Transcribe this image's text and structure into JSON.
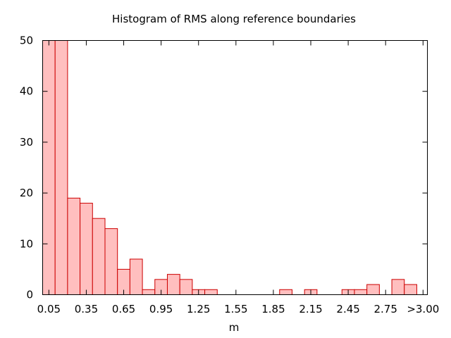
{
  "chart_data": {
    "type": "bar",
    "title": "Histogram of RMS along reference boundaries",
    "xlabel": "m",
    "ylabel": "",
    "ylim": [
      0,
      50
    ],
    "yticks": [
      0,
      10,
      20,
      30,
      40,
      50
    ],
    "xtick_labels": [
      "0.05",
      "0.35",
      "0.65",
      "0.95",
      "1.25",
      "1.55",
      "1.85",
      "2.15",
      "2.45",
      "2.75",
      ">3.00"
    ],
    "bin_width": 0.1,
    "colors": {
      "fill": "#ffbfbf",
      "stroke": "#cc0000"
    },
    "bins": [
      {
        "x": 0.05,
        "value": 50
      },
      {
        "x": 0.15,
        "value": 50
      },
      {
        "x": 0.25,
        "value": 19
      },
      {
        "x": 0.35,
        "value": 18
      },
      {
        "x": 0.45,
        "value": 15
      },
      {
        "x": 0.55,
        "value": 13
      },
      {
        "x": 0.65,
        "value": 5
      },
      {
        "x": 0.75,
        "value": 7
      },
      {
        "x": 0.85,
        "value": 1
      },
      {
        "x": 0.95,
        "value": 3
      },
      {
        "x": 1.05,
        "value": 4
      },
      {
        "x": 1.15,
        "value": 3
      },
      {
        "x": 1.25,
        "value": 1
      },
      {
        "x": 1.35,
        "value": 1
      },
      {
        "x": 1.95,
        "value": 1
      },
      {
        "x": 2.15,
        "value": 1
      },
      {
        "x": 2.45,
        "value": 1
      },
      {
        "x": 2.55,
        "value": 1
      },
      {
        "x": 2.65,
        "value": 2
      },
      {
        "x": 2.85,
        "value": 3
      },
      {
        "x": 2.95,
        "value": 2
      }
    ]
  }
}
